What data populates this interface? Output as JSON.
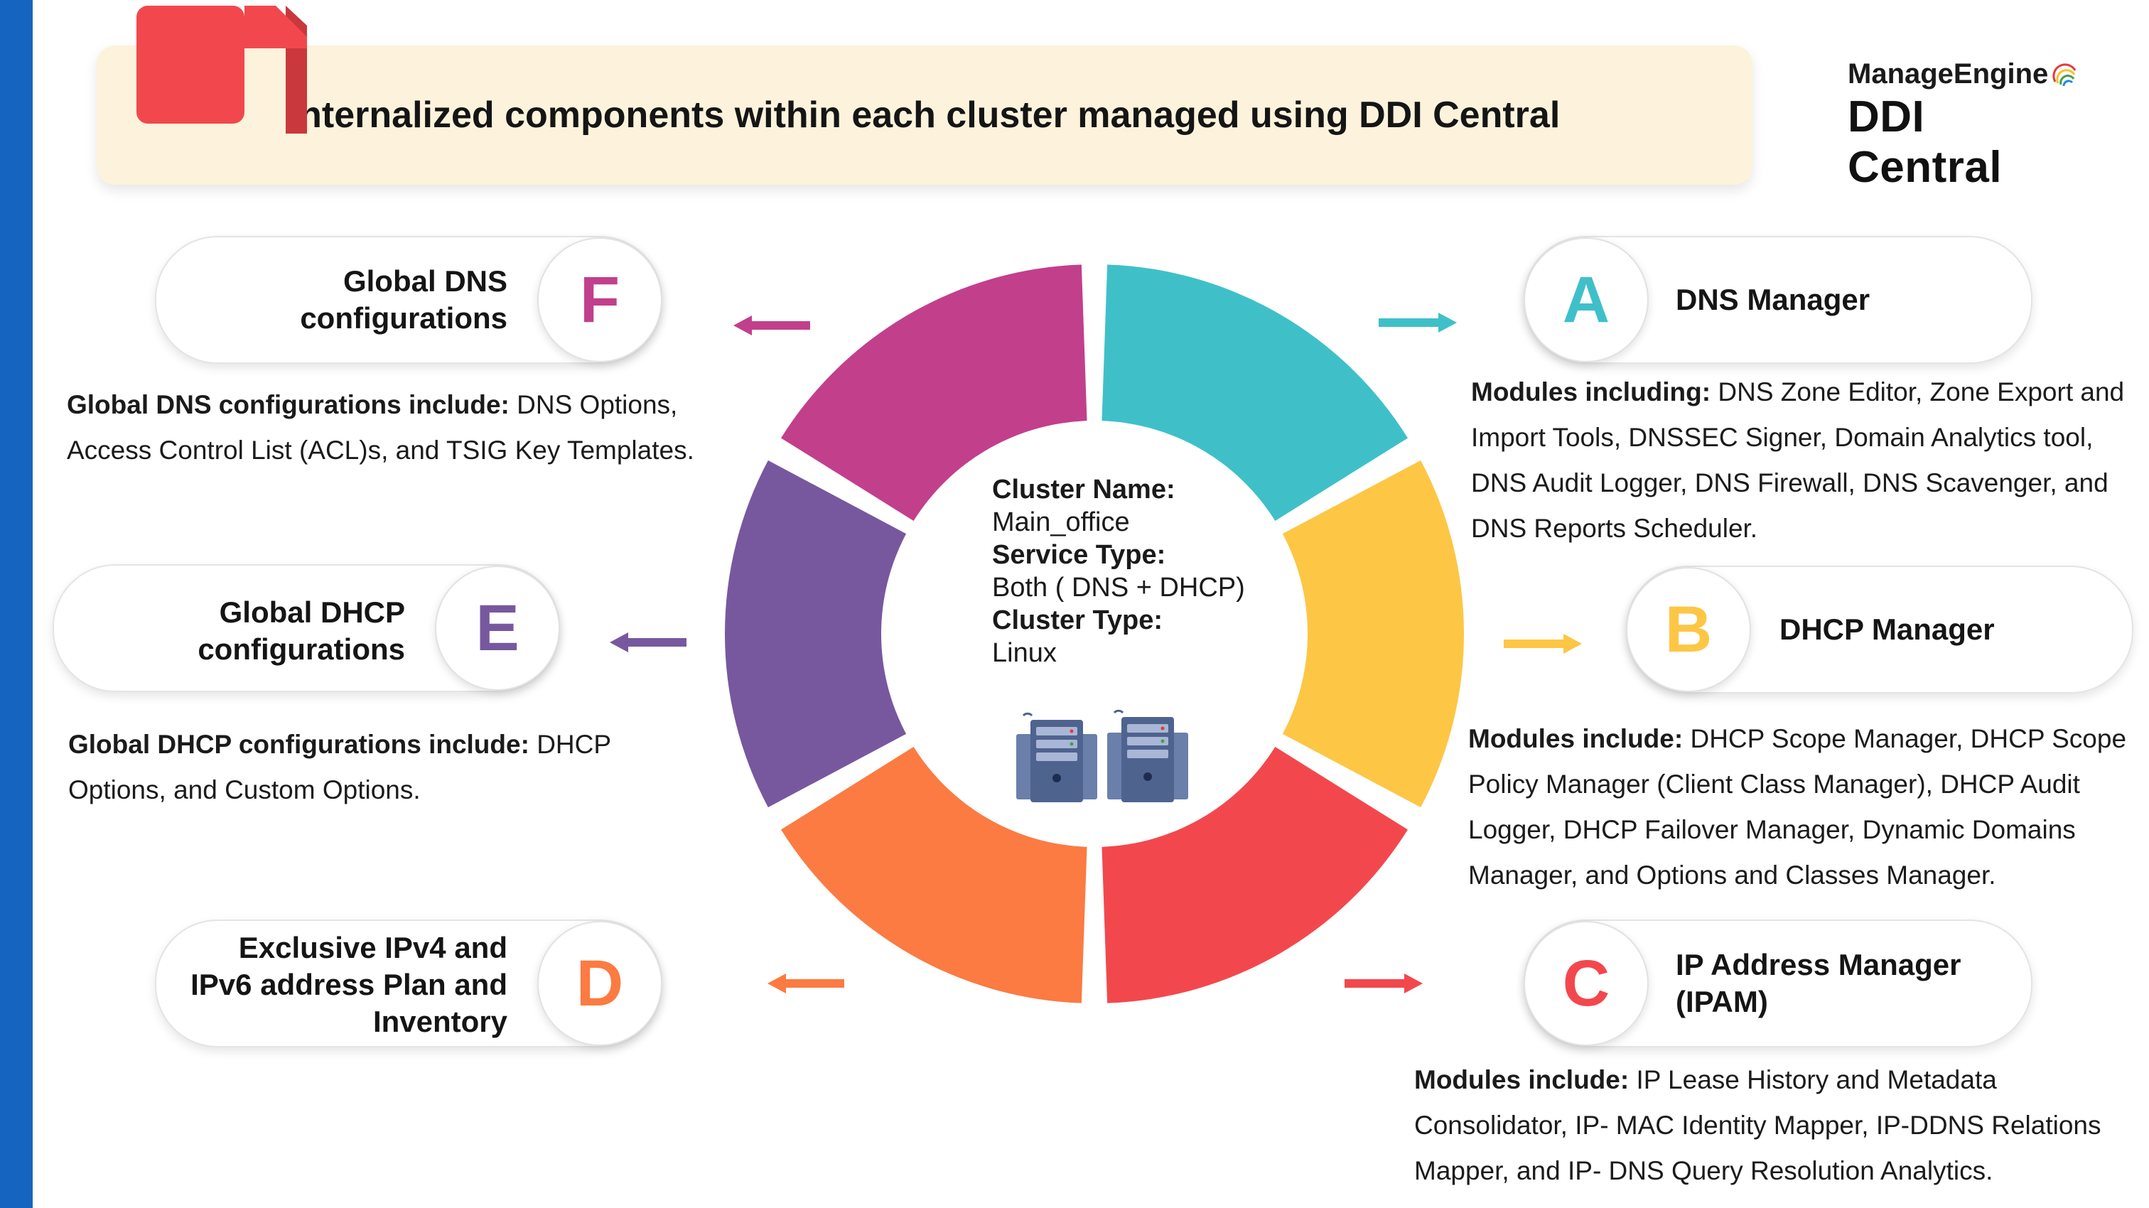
{
  "title": "Internalized components within each cluster managed using DDI Central",
  "brand": {
    "company": "ManageEngine",
    "product": "DDI Central"
  },
  "cluster": {
    "name_label": "Cluster Name:",
    "name_value": "Main_office",
    "service_label": "Service Type:",
    "service_value": "Both ( DNS + DHCP)",
    "type_label": "Cluster Type:",
    "type_value": "Linux"
  },
  "components": {
    "A": {
      "letter": "A",
      "title": "DNS Manager",
      "color": "#3fc0c8",
      "desc_lead": "Modules including:",
      "desc_text": " DNS Zone Editor, Zone Export and Import Tools, DNSSEC Signer, Domain Analytics tool, DNS Audit Logger, DNS Firewall, DNS Scavenger, and DNS Reports Scheduler."
    },
    "B": {
      "letter": "B",
      "title": "DHCP Manager",
      "color": "#fdc645",
      "desc_lead": "Modules include:",
      "desc_text": " DHCP Scope Manager, DHCP Scope Policy Manager (Client Class Manager), DHCP Audit Logger, DHCP Failover Manager, Dynamic Domains Manager, and Options and Classes Manager."
    },
    "C": {
      "letter": "C",
      "title_line1": "IP Address Manager",
      "title_line2": "(IPAM)",
      "color": "#f2484d",
      "desc_lead": "Modules include:",
      "desc_text": " IP Lease History and Metadata Consolidator, IP- MAC Identity Mapper, IP-DDNS Relations Mapper, and IP- DNS Query Resolution Analytics."
    },
    "D": {
      "letter": "D",
      "title_line1": "Exclusive IPv4 and",
      "title_line2": "IPv6 address Plan and",
      "title_line3": "Inventory",
      "color": "#fb7b42"
    },
    "E": {
      "letter": "E",
      "title_line1": "Global DHCP",
      "title_line2": "configurations",
      "color": "#77589e",
      "desc_lead": "Global DHCP configurations include:",
      "desc_text": " DHCP Options, and Custom Options."
    },
    "F": {
      "letter": "F",
      "title_line1": "Global DNS",
      "title_line2": "configurations",
      "color": "#c23f8c",
      "desc_lead": "Global DNS configurations include:",
      "desc_text": " DNS Options, Access Control List (ACL)s, and TSIG Key Templates."
    }
  }
}
